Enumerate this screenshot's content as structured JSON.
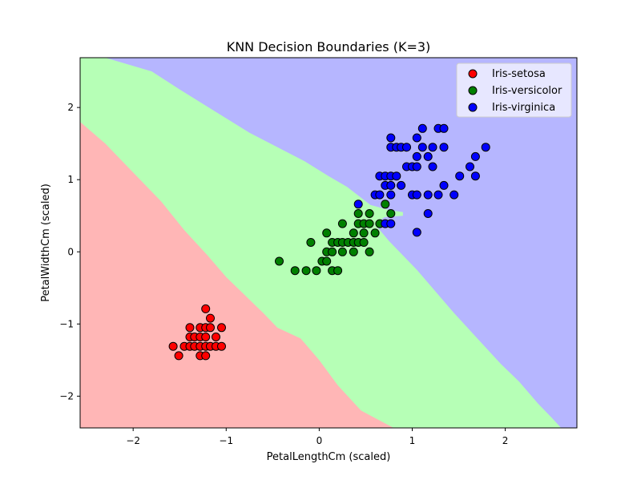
{
  "chart_data": {
    "type": "scatter",
    "title": "KNN Decision Boundaries (K=3)",
    "xlabel": "PetalLengthCm (scaled)",
    "ylabel": "PetalWidthCm (scaled)",
    "xlim": [
      -2.57,
      2.77
    ],
    "ylim": [
      -2.44,
      2.69
    ],
    "xticks": [
      -2,
      -1,
      0,
      1,
      2
    ],
    "yticks": [
      -2,
      -1,
      0,
      1,
      2
    ],
    "xtick_labels": [
      "−2",
      "−1",
      "0",
      "1",
      "2"
    ],
    "ytick_labels": [
      "−2",
      "−1",
      "0",
      "1",
      "2"
    ],
    "legend_position": "top-right",
    "regions": {
      "colors": {
        "setosa": "#ffb6b6",
        "versicolor": "#b6ffb6",
        "virginica": "#b6b6ff"
      },
      "setosa_versicolor_boundary": [
        [
          -2.57,
          1.8
        ],
        [
          -2.3,
          1.5
        ],
        [
          -2.0,
          1.1
        ],
        [
          -1.7,
          0.7
        ],
        [
          -1.45,
          0.3
        ],
        [
          -1.2,
          -0.05
        ],
        [
          -1.0,
          -0.35
        ],
        [
          -0.8,
          -0.6
        ],
        [
          -0.6,
          -0.85
        ],
        [
          -0.45,
          -1.05
        ],
        [
          -0.2,
          -1.2
        ],
        [
          0.0,
          -1.5
        ],
        [
          0.2,
          -1.85
        ],
        [
          0.45,
          -2.2
        ],
        [
          0.8,
          -2.44
        ]
      ],
      "versicolor_virginica_boundary": [
        [
          -2.3,
          2.69
        ],
        [
          -1.8,
          2.5
        ],
        [
          -1.5,
          2.25
        ],
        [
          -1.25,
          2.05
        ],
        [
          -1.0,
          1.85
        ],
        [
          -0.75,
          1.65
        ],
        [
          -0.45,
          1.45
        ],
        [
          -0.15,
          1.25
        ],
        [
          0.1,
          1.05
        ],
        [
          0.3,
          0.9
        ],
        [
          0.45,
          0.75
        ],
        [
          0.55,
          0.65
        ],
        [
          0.75,
          0.58
        ],
        [
          0.9,
          0.55
        ],
        [
          0.9,
          0.5
        ],
        [
          0.7,
          0.48
        ],
        [
          0.6,
          0.38
        ],
        [
          0.75,
          0.15
        ],
        [
          0.9,
          -0.05
        ],
        [
          1.05,
          -0.25
        ],
        [
          1.25,
          -0.55
        ],
        [
          1.45,
          -0.85
        ],
        [
          1.7,
          -1.2
        ],
        [
          1.95,
          -1.55
        ],
        [
          2.15,
          -1.8
        ],
        [
          2.35,
          -2.1
        ],
        [
          2.5,
          -2.3
        ],
        [
          2.6,
          -2.44
        ]
      ]
    },
    "series": [
      {
        "name": "Iris-setosa",
        "color": "#ff0000",
        "points": [
          [
            -1.57,
            -1.31
          ],
          [
            -1.51,
            -1.44
          ],
          [
            -1.45,
            -1.31
          ],
          [
            -1.39,
            -1.31
          ],
          [
            -1.39,
            -1.18
          ],
          [
            -1.39,
            -1.05
          ],
          [
            -1.34,
            -1.31
          ],
          [
            -1.34,
            -1.18
          ],
          [
            -1.28,
            -1.44
          ],
          [
            -1.28,
            -1.31
          ],
          [
            -1.28,
            -1.18
          ],
          [
            -1.28,
            -1.05
          ],
          [
            -1.22,
            -1.44
          ],
          [
            -1.22,
            -1.31
          ],
          [
            -1.22,
            -1.18
          ],
          [
            -1.22,
            -1.05
          ],
          [
            -1.22,
            -0.79
          ],
          [
            -1.17,
            -1.31
          ],
          [
            -1.17,
            -1.05
          ],
          [
            -1.17,
            -0.92
          ],
          [
            -1.11,
            -1.31
          ],
          [
            -1.11,
            -1.18
          ],
          [
            -1.05,
            -1.31
          ],
          [
            -1.05,
            -1.05
          ]
        ]
      },
      {
        "name": "Iris-versicolor",
        "color": "#008000",
        "points": [
          [
            -0.43,
            -0.13
          ],
          [
            -0.26,
            -0.26
          ],
          [
            -0.14,
            -0.26
          ],
          [
            -0.09,
            0.13
          ],
          [
            -0.03,
            -0.26
          ],
          [
            0.03,
            -0.13
          ],
          [
            0.08,
            -0.13
          ],
          [
            0.08,
            0.0
          ],
          [
            0.08,
            0.26
          ],
          [
            0.14,
            0.0
          ],
          [
            0.14,
            0.13
          ],
          [
            0.14,
            -0.26
          ],
          [
            0.2,
            0.13
          ],
          [
            0.2,
            -0.26
          ],
          [
            0.25,
            0.0
          ],
          [
            0.25,
            0.13
          ],
          [
            0.25,
            0.39
          ],
          [
            0.31,
            0.13
          ],
          [
            0.37,
            0.0
          ],
          [
            0.37,
            0.13
          ],
          [
            0.37,
            0.26
          ],
          [
            0.42,
            0.13
          ],
          [
            0.42,
            0.39
          ],
          [
            0.42,
            0.53
          ],
          [
            0.48,
            0.13
          ],
          [
            0.48,
            0.26
          ],
          [
            0.48,
            0.39
          ],
          [
            0.54,
            0.0
          ],
          [
            0.54,
            0.39
          ],
          [
            0.54,
            0.53
          ],
          [
            0.6,
            0.26
          ],
          [
            0.65,
            0.39
          ],
          [
            0.71,
            0.66
          ],
          [
            0.77,
            0.53
          ]
        ]
      },
      {
        "name": "Iris-virginica",
        "color": "#0000ff",
        "points": [
          [
            0.42,
            0.66
          ],
          [
            0.6,
            0.79
          ],
          [
            0.65,
            0.79
          ],
          [
            0.65,
            1.05
          ],
          [
            0.71,
            0.39
          ],
          [
            0.71,
            0.92
          ],
          [
            0.71,
            1.05
          ],
          [
            0.77,
            0.39
          ],
          [
            0.77,
            0.79
          ],
          [
            0.77,
            0.92
          ],
          [
            0.77,
            1.05
          ],
          [
            0.77,
            1.45
          ],
          [
            0.77,
            1.58
          ],
          [
            0.83,
            1.05
          ],
          [
            0.83,
            1.45
          ],
          [
            0.88,
            0.92
          ],
          [
            0.88,
            1.45
          ],
          [
            0.94,
            1.18
          ],
          [
            0.94,
            1.45
          ],
          [
            1.0,
            0.79
          ],
          [
            1.0,
            1.18
          ],
          [
            1.05,
            0.27
          ],
          [
            1.05,
            0.79
          ],
          [
            1.05,
            1.18
          ],
          [
            1.05,
            1.32
          ],
          [
            1.05,
            1.58
          ],
          [
            1.11,
            1.45
          ],
          [
            1.11,
            1.71
          ],
          [
            1.17,
            0.53
          ],
          [
            1.17,
            0.79
          ],
          [
            1.17,
            1.32
          ],
          [
            1.22,
            1.18
          ],
          [
            1.22,
            1.45
          ],
          [
            1.28,
            0.79
          ],
          [
            1.28,
            1.71
          ],
          [
            1.34,
            0.92
          ],
          [
            1.34,
            1.45
          ],
          [
            1.34,
            1.71
          ],
          [
            1.45,
            0.79
          ],
          [
            1.51,
            1.05
          ],
          [
            1.62,
            1.18
          ],
          [
            1.68,
            1.05
          ],
          [
            1.68,
            1.32
          ],
          [
            1.79,
            1.45
          ]
        ]
      }
    ]
  }
}
